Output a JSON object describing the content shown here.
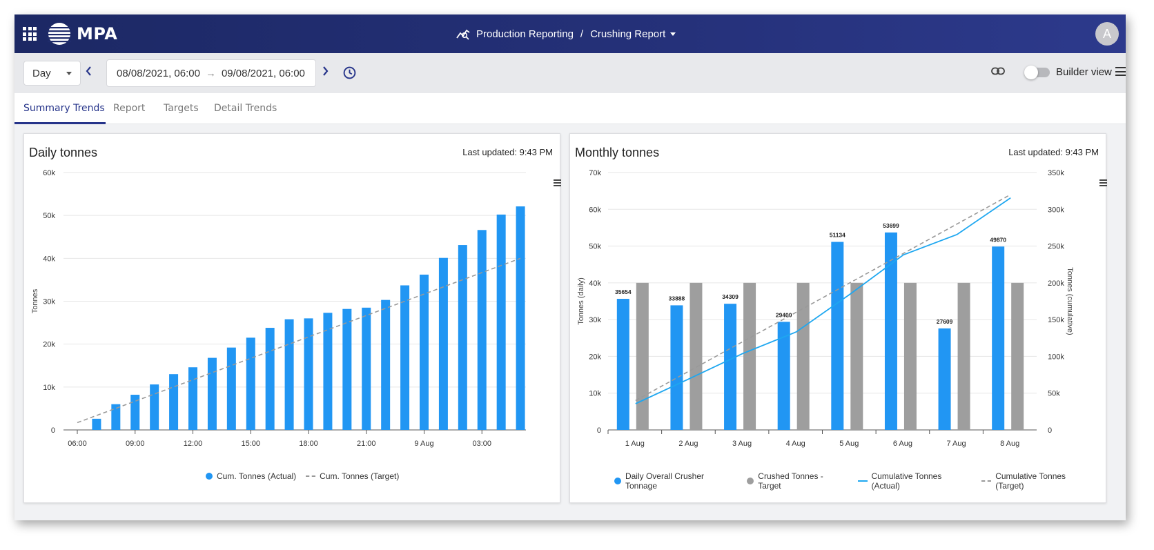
{
  "app": {
    "brand": "MPA",
    "avatar_initial": "A"
  },
  "breadcrumb": {
    "section": "Production Reporting",
    "separator": "/",
    "page": "Crushing Report"
  },
  "toolbar": {
    "period": "Day",
    "date_from": "08/08/2021, 06:00",
    "date_arrow": "→",
    "date_to": "09/08/2021, 06:00",
    "builder_label": "Builder view",
    "builder_on": false
  },
  "tabs": [
    {
      "label": "Summary Trends",
      "active": true
    },
    {
      "label": "Report",
      "active": false
    },
    {
      "label": "Targets",
      "active": false
    },
    {
      "label": "Detail Trends",
      "active": false
    }
  ],
  "panels": {
    "daily": {
      "title": "Daily tonnes",
      "updated": "Last updated: 9:43 PM"
    },
    "monthly": {
      "title": "Monthly tonnes",
      "updated": "Last updated: 9:43 PM"
    }
  },
  "colors": {
    "bar_blue": "#2196f3",
    "bar_grey": "#9e9e9e",
    "line_blue": "#1ea7f0",
    "target_dash": "#999999",
    "brand_navy": "#26348a"
  },
  "chart_data": [
    {
      "type": "bar",
      "title": "Daily tonnes",
      "ylabel": "Tonnes",
      "ylim": [
        0,
        60000
      ],
      "yticks": [
        "0",
        "10k",
        "20k",
        "30k",
        "40k",
        "50k",
        "60k"
      ],
      "xticks": [
        "06:00",
        "09:00",
        "12:00",
        "15:00",
        "18:00",
        "21:00",
        "9 Aug",
        "03:00"
      ],
      "grid": true,
      "legend_position": "bottom",
      "series": [
        {
          "name": "Cum. Tonnes (Actual)",
          "kind": "bar",
          "values": [
            2600,
            6000,
            8200,
            10600,
            13000,
            14600,
            16800,
            19200,
            21500,
            23800,
            25800,
            26000,
            27300,
            28200,
            28500,
            30300,
            33700,
            36200,
            40100,
            43100,
            46600,
            50200,
            52100
          ]
        },
        {
          "name": "Cum. Tonnes (Target)",
          "kind": "dashed-line",
          "from": 1700,
          "to": 40000
        }
      ]
    },
    {
      "type": "bar",
      "title": "Monthly tonnes",
      "categories": [
        "1 Aug",
        "2 Aug",
        "3 Aug",
        "4 Aug",
        "5 Aug",
        "6 Aug",
        "7 Aug",
        "8 Aug"
      ],
      "ylabel": "Tonnes (daily)",
      "ylabel_right": "Tonnes (cumulative)",
      "ylim": [
        0,
        70000
      ],
      "ylim_right": [
        0,
        350000
      ],
      "yticks": [
        "0",
        "10k",
        "20k",
        "30k",
        "40k",
        "50k",
        "60k",
        "70k"
      ],
      "yticks_right": [
        "0",
        "50k",
        "100k",
        "150k",
        "200k",
        "250k",
        "300k",
        "350k"
      ],
      "grid": true,
      "legend_position": "bottom",
      "series": [
        {
          "name": "Daily Overall Crusher Tonnage",
          "kind": "bar",
          "axis": "left",
          "values": [
            35654,
            33888,
            34309,
            29400,
            51134,
            53699,
            27609,
            49870
          ],
          "labels": [
            "35654",
            "33888",
            "34309",
            "29400",
            "51134",
            "53699",
            "27609",
            "49870"
          ]
        },
        {
          "name": "Crushed Tonnes - Target",
          "kind": "bar",
          "axis": "left",
          "values": [
            40000,
            40000,
            40000,
            40000,
            40000,
            40000,
            40000,
            40000
          ]
        },
        {
          "name": "Cumulative Tonnes (Actual)",
          "kind": "line",
          "axis": "right",
          "values": [
            35654,
            69542,
            103851,
            133251,
            184385,
            238084,
            265693,
            315563
          ]
        },
        {
          "name": "Cumulative Tonnes (Target)",
          "kind": "dashed-line",
          "axis": "right",
          "values": [
            40000,
            80000,
            120000,
            160000,
            200000,
            240000,
            280000,
            320000
          ]
        }
      ]
    }
  ]
}
